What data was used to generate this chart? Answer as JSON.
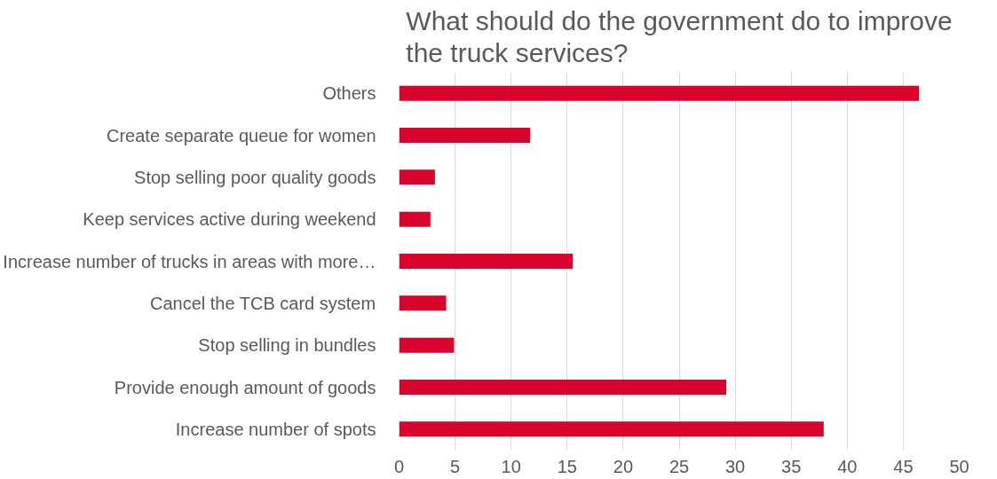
{
  "chart_data": {
    "type": "bar",
    "orientation": "horizontal",
    "title": "What should do the government do to improve the truck services?",
    "categories": [
      "Others",
      "Create separate queue for women",
      "Stop selling poor quality goods",
      "Keep services active during weekend",
      "Increase number of trucks in areas with more…",
      "Cancel the TCB card system",
      "Stop selling in bundles",
      "Provide enough amount of goods",
      "Increase number of spots"
    ],
    "values": [
      46.4,
      11.7,
      3.2,
      2.8,
      15.5,
      4.2,
      4.9,
      29.2,
      37.9
    ],
    "color": "#d9042b",
    "xlim": [
      0,
      50
    ],
    "xticks": [
      0,
      5,
      10,
      15,
      20,
      25,
      30,
      35,
      40,
      45,
      50
    ],
    "grid": "x"
  }
}
